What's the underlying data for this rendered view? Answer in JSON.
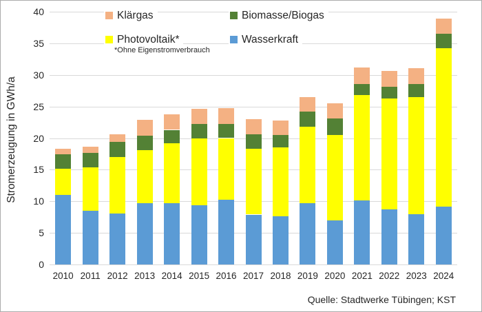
{
  "y_axis": {
    "title": "Stromerzeugung in GWh/a"
  },
  "legend": {
    "items": [
      {
        "label": "Klärgas",
        "series": "Klärgas"
      },
      {
        "label": "Biomasse/Biogas",
        "series": "Biomasse/Biogas"
      },
      {
        "label": "Photovoltaik*",
        "series": "Photovoltaik*"
      },
      {
        "label": "Wasserkraft",
        "series": "Wasserkraft"
      }
    ],
    "note": "*Ohne Eigenstromverbrauch"
  },
  "source_note": "Quelle: Stadtwerke Tübingen; KST",
  "chart_data": {
    "type": "bar",
    "stacked": true,
    "title": "",
    "xlabel": "",
    "ylabel": "Stromerzeugung in GWh/a",
    "ylim": [
      0,
      40
    ],
    "ytick_step": 5,
    "grid": "horizontal-only",
    "gridline_color": "#d9d9d9",
    "legend_position": "top-inside",
    "categories": [
      "2010",
      "2011",
      "2012",
      "2013",
      "2014",
      "2015",
      "2016",
      "2017",
      "2018",
      "2019",
      "2020",
      "2021",
      "2022",
      "2023",
      "2024"
    ],
    "series": [
      {
        "name": "Wasserkraft",
        "color": "#5b9bd5",
        "values": [
          11.0,
          8.5,
          8.1,
          9.7,
          9.7,
          9.4,
          10.2,
          7.9,
          7.6,
          9.7,
          7.0,
          10.1,
          8.7,
          8.0,
          9.2
        ]
      },
      {
        "name": "Photovoltaik*",
        "color": "#ffff00",
        "values": [
          4.2,
          6.9,
          8.9,
          8.4,
          9.5,
          10.5,
          9.8,
          10.4,
          10.9,
          12.1,
          13.5,
          16.7,
          17.6,
          18.5,
          25.0
        ]
      },
      {
        "name": "Biomasse/Biogas",
        "color": "#538135",
        "values": [
          2.2,
          2.3,
          2.4,
          2.3,
          2.1,
          2.3,
          2.2,
          2.3,
          2.0,
          2.4,
          2.6,
          1.8,
          1.8,
          2.1,
          2.3
        ]
      },
      {
        "name": "Klärgas",
        "color": "#f4b183",
        "values": [
          0.9,
          0.9,
          1.2,
          2.5,
          2.5,
          2.4,
          2.6,
          2.4,
          2.3,
          2.3,
          2.4,
          2.6,
          2.5,
          2.5,
          2.4
        ]
      }
    ],
    "totals": [
      18.3,
      18.6,
      20.6,
      22.9,
      23.8,
      24.6,
      24.8,
      23.0,
      22.8,
      26.5,
      25.5,
      31.2,
      30.6,
      31.1,
      38.9
    ]
  }
}
